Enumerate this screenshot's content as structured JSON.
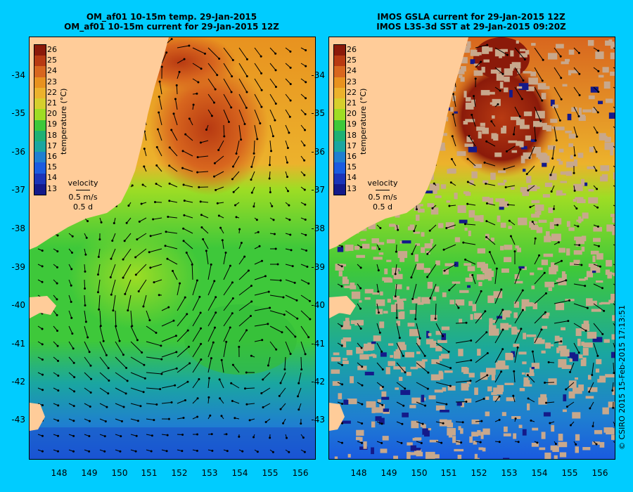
{
  "left_panel": {
    "title_line1": "OM_af01 10-15m temp. 29-Jan-2015",
    "title_line2": "OM_af01 10-15m current for 29-Jan-2015 12Z"
  },
  "right_panel": {
    "title_line1": "IMOS GSLA current for 29-Jan-2015 12Z",
    "title_line2": "IMOS L3S-3d SST at 29-Jan-2015 09:20Z"
  },
  "colorbar": {
    "label": "temperature (°C)",
    "ticks": [
      "26",
      "25",
      "24",
      "23",
      "22",
      "21",
      "20",
      "19",
      "18",
      "17",
      "16",
      "15",
      "14",
      "13"
    ],
    "colors": [
      "#8b1a0a",
      "#b83a12",
      "#d8661e",
      "#e8921f",
      "#ecb22c",
      "#d6cf2c",
      "#9edd24",
      "#3ec83a",
      "#1eb074",
      "#1aa6a0",
      "#1f7fd0",
      "#1a5be0",
      "#1b34b8",
      "#141a8a"
    ]
  },
  "velocity_key": {
    "line1": "velocity",
    "line2": "0.5 m/s",
    "line3": "0.5 d"
  },
  "y_axis": {
    "ticks": [
      "-34",
      "-35",
      "-36",
      "-37",
      "-38",
      "-39",
      "-40",
      "-41",
      "-42",
      "-43"
    ]
  },
  "x_axis": {
    "ticks": [
      "148",
      "149",
      "150",
      "151",
      "152",
      "153",
      "154",
      "155",
      "156"
    ]
  },
  "credit": "© CSIRO 2015  15-Feb-2015 17:13:51",
  "colors": {
    "background": "#00ccff",
    "land": "#ffcc99",
    "missing": "#c8a88c"
  }
}
